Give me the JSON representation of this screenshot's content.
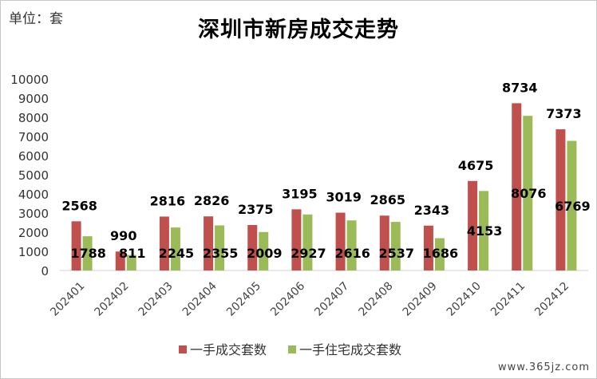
{
  "unit_label": "单位：套",
  "watermark": "www.365jz.com",
  "chart_data": {
    "type": "bar",
    "title": "深圳市新房成交走势",
    "xlabel": "",
    "ylabel": "",
    "ylim": [
      0,
      10000
    ],
    "yticks": [
      0,
      1000,
      2000,
      3000,
      4000,
      5000,
      6000,
      7000,
      8000,
      9000,
      10000
    ],
    "grid": false,
    "legend_position": "bottom",
    "categories": [
      "202401",
      "202402",
      "202403",
      "202404",
      "202405",
      "202406",
      "202407",
      "202408",
      "202409",
      "202410",
      "202411",
      "202412"
    ],
    "series": [
      {
        "name": "一手成交套数",
        "color": "#c0504d",
        "values": [
          2568,
          990,
          2816,
          2826,
          2375,
          3195,
          3019,
          2865,
          2343,
          4675,
          8734,
          7373
        ]
      },
      {
        "name": "一手住宅成交套数",
        "color": "#9bbb59",
        "values": [
          1788,
          811,
          2245,
          2355,
          2009,
          2927,
          2616,
          2537,
          1686,
          4153,
          8076,
          6769
        ]
      }
    ]
  }
}
